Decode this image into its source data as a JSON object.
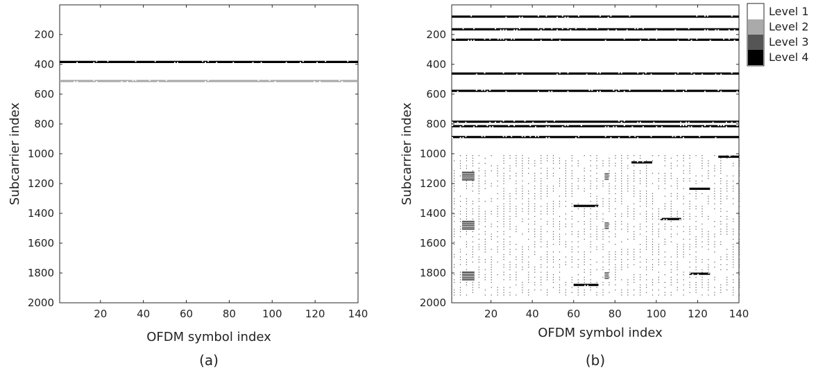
{
  "chart_data": [
    {
      "type": "heatmap",
      "panel_label": "(a)",
      "xlabel": "OFDM symbol index",
      "ylabel": "Subcarrier index",
      "xlim": [
        1,
        140
      ],
      "ylim": [
        1,
        2000
      ],
      "y_reversed": true,
      "xticks": [
        20,
        40,
        60,
        80,
        100,
        120,
        140
      ],
      "yticks": [
        200,
        400,
        600,
        800,
        1000,
        1200,
        1400,
        1600,
        1800,
        2000
      ],
      "background_level": 1,
      "bands": [
        {
          "subcarrier": 384,
          "level": 4,
          "x_start": 1,
          "x_end": 140
        },
        {
          "subcarrier": 512,
          "level": 2,
          "x_start": 1,
          "x_end": 140
        }
      ]
    },
    {
      "type": "heatmap",
      "panel_label": "(b)",
      "xlabel": "OFDM symbol index",
      "ylabel": "Subcarrier index",
      "xlim": [
        1,
        140
      ],
      "ylim": [
        1,
        2000
      ],
      "y_reversed": true,
      "xticks": [
        20,
        40,
        60,
        80,
        100,
        120,
        140
      ],
      "yticks": [
        200,
        400,
        600,
        800,
        1000,
        1200,
        1400,
        1600,
        1800,
        2000
      ],
      "background_level": 1,
      "bands": [
        {
          "subcarrier": 80,
          "level": 4,
          "x_start": 1,
          "x_end": 140
        },
        {
          "subcarrier": 165,
          "level": 4,
          "x_start": 1,
          "x_end": 140
        },
        {
          "subcarrier": 235,
          "level": 4,
          "x_start": 1,
          "x_end": 140
        },
        {
          "subcarrier": 462,
          "level": 4,
          "x_start": 1,
          "x_end": 140
        },
        {
          "subcarrier": 578,
          "level": 4,
          "x_start": 1,
          "x_end": 140
        },
        {
          "subcarrier": 785,
          "level": 4,
          "x_start": 1,
          "x_end": 140
        },
        {
          "subcarrier": 815,
          "level": 4,
          "x_start": 1,
          "x_end": 140
        },
        {
          "subcarrier": 888,
          "level": 4,
          "x_start": 1,
          "x_end": 140
        },
        {
          "subcarrier": 1058,
          "level": 4,
          "x_start": 88,
          "x_end": 98
        },
        {
          "subcarrier": 1020,
          "level": 4,
          "x_start": 130,
          "x_end": 140
        },
        {
          "subcarrier": 1235,
          "level": 4,
          "x_start": 116,
          "x_end": 126
        },
        {
          "subcarrier": 1350,
          "level": 4,
          "x_start": 60,
          "x_end": 72
        },
        {
          "subcarrier": 1438,
          "level": 4,
          "x_start": 102,
          "x_end": 112
        },
        {
          "subcarrier": 1805,
          "level": 4,
          "x_start": 116,
          "x_end": 126
        },
        {
          "subcarrier": 1880,
          "level": 4,
          "x_start": 60,
          "x_end": 72
        }
      ],
      "blocks": [
        {
          "x_start": 6,
          "x_end": 12,
          "y_start": 1120,
          "y_end": 1180,
          "level": 3
        },
        {
          "x_start": 6,
          "x_end": 12,
          "y_start": 1450,
          "y_end": 1510,
          "level": 3
        },
        {
          "x_start": 6,
          "x_end": 12,
          "y_start": 1790,
          "y_end": 1850,
          "level": 3
        },
        {
          "x_start": 75,
          "x_end": 77,
          "y_start": 1130,
          "y_end": 1175,
          "level": 3
        },
        {
          "x_start": 75,
          "x_end": 77,
          "y_start": 1460,
          "y_end": 1505,
          "level": 3
        },
        {
          "x_start": 75,
          "x_end": 77,
          "y_start": 1795,
          "y_end": 1840,
          "level": 3
        }
      ],
      "pilot_region": {
        "x_start": 1,
        "x_end": 140,
        "y_start": 1010,
        "y_end": 1960,
        "x_step": 3,
        "y_step": 17,
        "level": 3
      }
    }
  ],
  "legend": {
    "placement": "right",
    "items": [
      {
        "label": "Level 1",
        "color": "#ffffff"
      },
      {
        "label": "Level 2",
        "color": "#aaaaaa"
      },
      {
        "label": "Level 3",
        "color": "#555555"
      },
      {
        "label": "Level 4",
        "color": "#000000"
      }
    ]
  }
}
